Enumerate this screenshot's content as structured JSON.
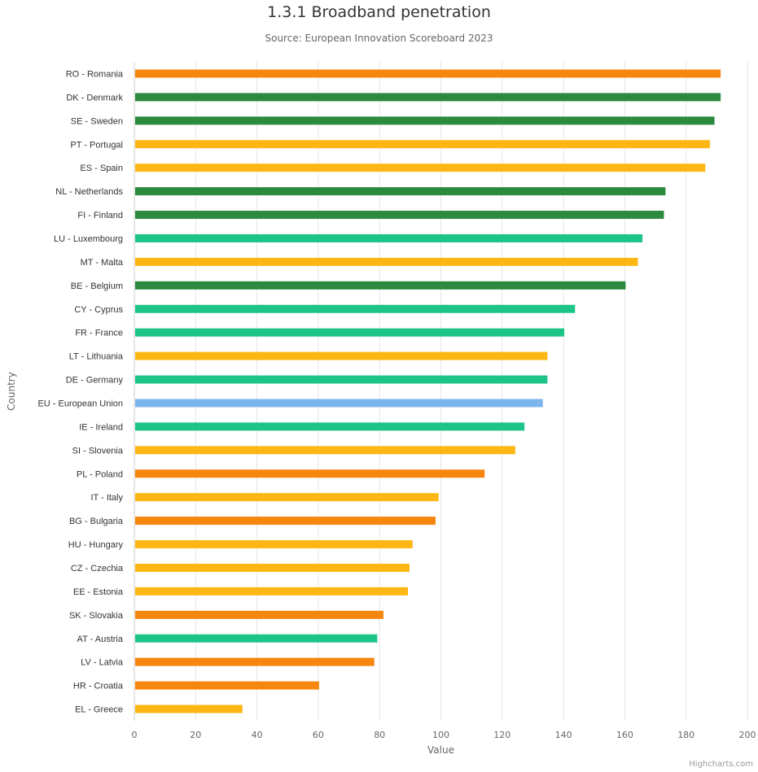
{
  "chart_data": {
    "type": "bar",
    "orientation": "horizontal",
    "title": "1.3.1 Broadband penetration",
    "subtitle": "Source: European Innovation Scoreboard 2023",
    "xlabel": "Value",
    "ylabel": "Country",
    "xlim": [
      0,
      200
    ],
    "xticks": [
      0,
      20,
      40,
      60,
      80,
      100,
      120,
      140,
      160,
      180,
      200
    ],
    "grid": true,
    "credits": "Highcharts.com",
    "categories": [
      "RO - Romania",
      "DK - Denmark",
      "SE - Sweden",
      "PT - Portugal",
      "ES - Spain",
      "NL - Netherlands",
      "FI - Finland",
      "LU - Luxembourg",
      "MT - Malta",
      "BE - Belgium",
      "CY - Cyprus",
      "FR - France",
      "LT - Lithuania",
      "DE - Germany",
      "EU - European Union",
      "IE - Ireland",
      "SI - Slovenia",
      "PL - Poland",
      "IT - Italy",
      "BG - Bulgaria",
      "HU - Hungary",
      "CZ - Czechia",
      "EE - Estonia",
      "SK - Slovakia",
      "AT - Austria",
      "LV - Latvia",
      "HR - Croatia",
      "EL - Greece"
    ],
    "values": [
      191,
      191,
      189,
      187.5,
      186,
      173,
      172.5,
      165.5,
      164,
      160,
      143.5,
      140,
      134.5,
      134.5,
      133,
      127,
      124,
      114,
      99,
      98,
      90.5,
      89.5,
      89,
      81,
      79,
      78,
      60,
      35
    ],
    "bar_colors": [
      "#F7860F",
      "#2B8A3E",
      "#2B8A3E",
      "#FCB714",
      "#FCB714",
      "#2B8A3E",
      "#2B8A3E",
      "#1DC487",
      "#FCB714",
      "#2B8A3E",
      "#1DC487",
      "#1DC487",
      "#FCB714",
      "#1DC487",
      "#7CB5EC",
      "#1DC487",
      "#FCB714",
      "#F7860F",
      "#FCB714",
      "#F7860F",
      "#FCB714",
      "#FCB714",
      "#FCB714",
      "#F7860F",
      "#1DC487",
      "#F7860F",
      "#F7860F",
      "#FCB714"
    ]
  }
}
